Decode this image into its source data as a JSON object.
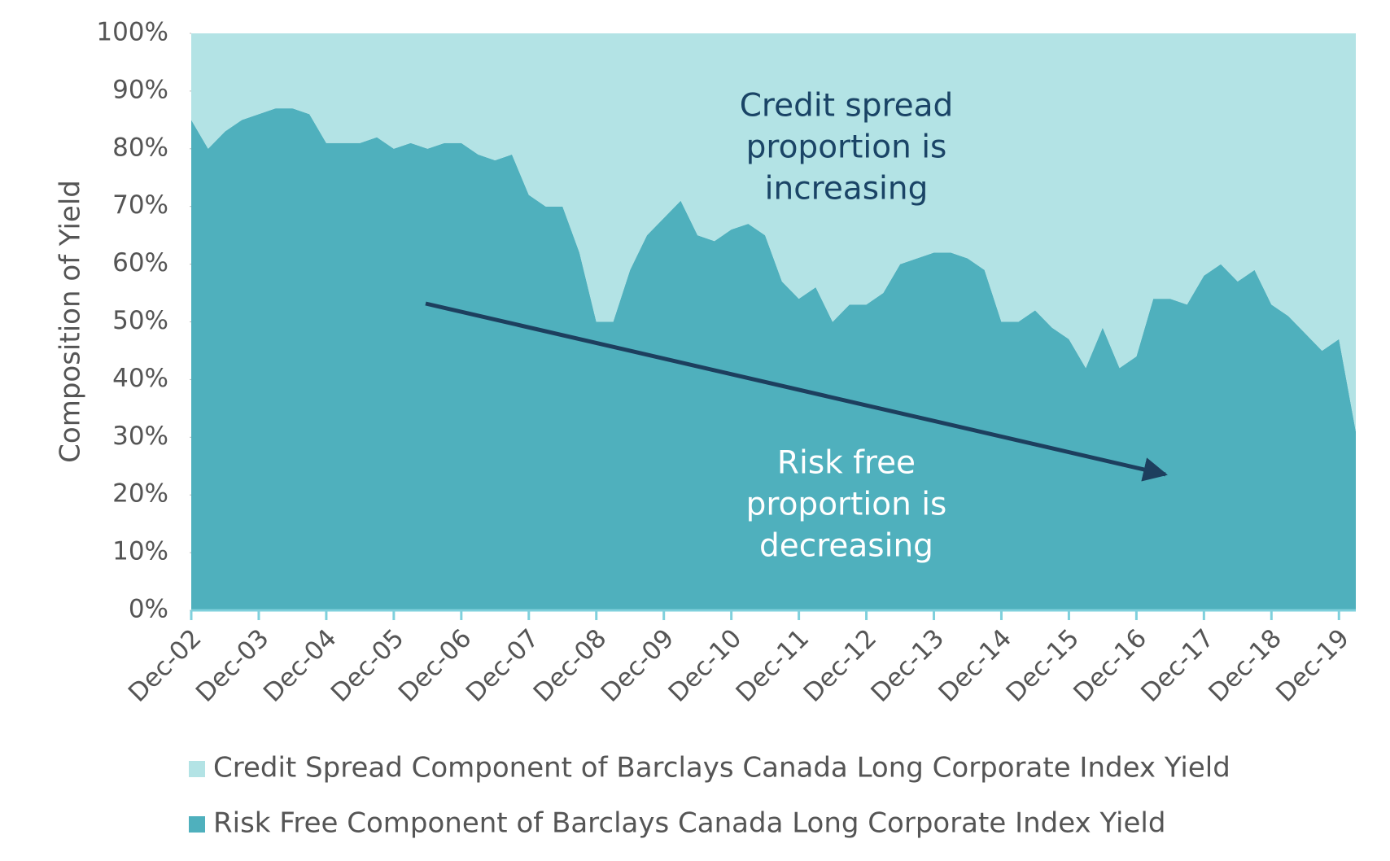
{
  "chart_data": {
    "type": "stacked_area",
    "y_label": "Composition of  Yield",
    "categories": [
      "Dec-02",
      null,
      null,
      null,
      "Dec-03",
      null,
      null,
      null,
      "Dec-04",
      null,
      null,
      null,
      "Dec-05",
      null,
      null,
      null,
      "Dec-06",
      null,
      null,
      null,
      "Dec-07",
      null,
      null,
      null,
      "Dec-08",
      null,
      null,
      null,
      "Dec-09",
      null,
      null,
      null,
      "Dec-10",
      null,
      null,
      null,
      "Dec-11",
      null,
      null,
      null,
      "Dec-12",
      null,
      null,
      null,
      "Dec-13",
      null,
      null,
      null,
      "Dec-14",
      null,
      null,
      null,
      "Dec-15",
      null,
      null,
      null,
      "Dec-16",
      null,
      null,
      null,
      "Dec-17",
      null,
      null,
      null,
      "Dec-18",
      null,
      null,
      null,
      "Dec-19",
      null
    ],
    "series": [
      {
        "name": "Risk Free Component of Barclays Canada Long Corporate Index Yield",
        "color": "#4fb0bd",
        "values": [
          85,
          80,
          83,
          85,
          86,
          87,
          87,
          86,
          81,
          81,
          81,
          82,
          80,
          81,
          80,
          81,
          81,
          79,
          78,
          79,
          72,
          70,
          70,
          62,
          50,
          50,
          59,
          65,
          68,
          71,
          65,
          64,
          66,
          67,
          65,
          57,
          54,
          56,
          50,
          53,
          53,
          55,
          60,
          61,
          62,
          62,
          61,
          59,
          50,
          50,
          52,
          49,
          47,
          42,
          49,
          42,
          44,
          54,
          54,
          53,
          58,
          60,
          57,
          59,
          53,
          51,
          48,
          45,
          47,
          31
        ]
      },
      {
        "name": "Credit Spread Component of Barclays Canada Long Corporate Index Yield",
        "color": "#b3e3e5",
        "values": [
          15,
          20,
          17,
          15,
          14,
          13,
          13,
          14,
          19,
          19,
          19,
          18,
          20,
          19,
          20,
          19,
          19,
          21,
          22,
          21,
          28,
          30,
          30,
          38,
          50,
          50,
          41,
          35,
          32,
          29,
          35,
          36,
          34,
          33,
          35,
          43,
          46,
          44,
          50,
          47,
          47,
          45,
          40,
          39,
          38,
          38,
          39,
          41,
          50,
          50,
          48,
          51,
          53,
          58,
          51,
          58,
          56,
          46,
          46,
          47,
          42,
          40,
          43,
          41,
          47,
          49,
          52,
          55,
          53,
          69
        ]
      }
    ],
    "ylim": [
      0,
      100
    ],
    "yticks": [
      {
        "value": 0,
        "label": "0%"
      },
      {
        "value": 10,
        "label": "10%"
      },
      {
        "value": 20,
        "label": "20%"
      },
      {
        "value": 30,
        "label": "30%"
      },
      {
        "value": 40,
        "label": "40%"
      },
      {
        "value": 50,
        "label": "50%"
      },
      {
        "value": 60,
        "label": "60%"
      },
      {
        "value": 70,
        "label": "70%"
      },
      {
        "value": 80,
        "label": "80%"
      },
      {
        "value": 90,
        "label": "90%"
      },
      {
        "value": 100,
        "label": "100%"
      }
    ],
    "annotations": [
      {
        "lines": [
          "Credit spread",
          "proportion is",
          "increasing"
        ],
        "color": "#1a4466"
      },
      {
        "lines": [
          "Risk free",
          "proportion is",
          "decreasing"
        ],
        "color": "#ffffff"
      }
    ]
  }
}
